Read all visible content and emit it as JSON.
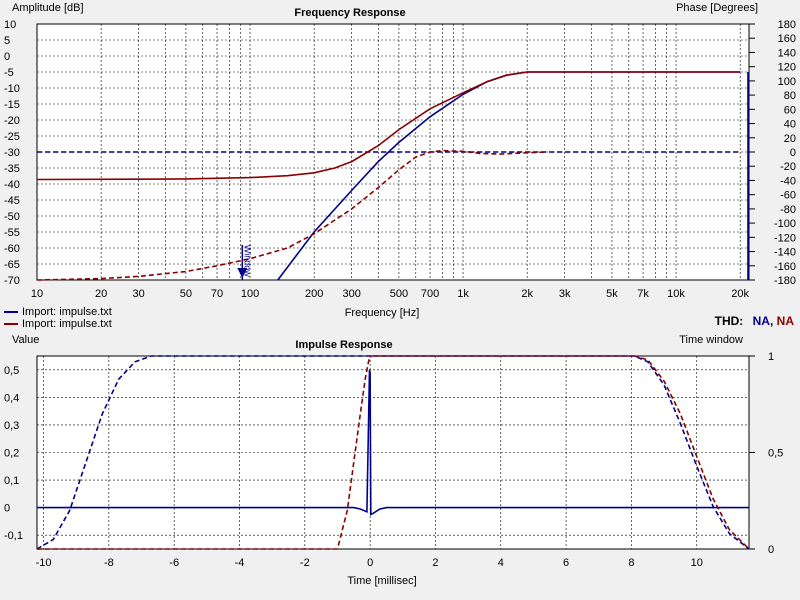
{
  "colors": {
    "series_blue": "#00008b",
    "series_red": "#8b0000",
    "plot_bg": "#ffffff",
    "grid": "#000000"
  },
  "freq_chart": {
    "title": "Frequency Response",
    "left_axis_label": "Amplitude [dB]",
    "right_axis_label": "Phase [Degrees]",
    "x_axis_label": "Frequency [Hz]",
    "marker_label": "Window",
    "left_ticks": [
      "10",
      "5",
      "0",
      "-5",
      "-10",
      "-15",
      "-20",
      "-25",
      "-30",
      "-35",
      "-40",
      "-45",
      "-50",
      "-55",
      "-60",
      "-65",
      "-70"
    ],
    "right_ticks": [
      "180",
      "160",
      "140",
      "120",
      "100",
      "80",
      "60",
      "40",
      "20",
      "0",
      "-20",
      "-40",
      "-60",
      "-80",
      "-100",
      "-120",
      "-140",
      "-160",
      "-180"
    ],
    "x_ticks": [
      "10",
      "20",
      "30",
      "50",
      "70",
      "100",
      "200",
      "300",
      "500",
      "700",
      "1k",
      "2k",
      "3k",
      "5k",
      "7k",
      "10k",
      "20k"
    ]
  },
  "legend": [
    {
      "label": "Import: impulse.txt",
      "color": "#00008b"
    },
    {
      "label": "Import: impulse.txt",
      "color": "#8b0000"
    }
  ],
  "thd": {
    "label": "THD:",
    "value_blue": "NA",
    "separator": ",",
    "value_red": "NA"
  },
  "impulse_chart": {
    "title": "Impulse Response",
    "left_axis_label": "Value",
    "right_axis_label": "Time window",
    "x_axis_label": "Time [millisec]",
    "left_ticks": [
      "0,5",
      "0,4",
      "0,3",
      "0,2",
      "0,1",
      "0",
      "-0,1"
    ],
    "right_ticks": [
      "1",
      "0,5",
      "0"
    ],
    "x_ticks": [
      "-10",
      "-8",
      "-6",
      "-4",
      "-2",
      "0",
      "2",
      "4",
      "6",
      "8",
      "10"
    ]
  },
  "chart_data": [
    {
      "type": "line",
      "title": "Frequency Response",
      "xlabel": "Frequency [Hz]",
      "ylabel": "Amplitude [dB]",
      "y2label": "Phase [Degrees]",
      "xscale": "log",
      "xlim": [
        10,
        22000
      ],
      "ylim": [
        -70,
        10
      ],
      "y2lim": [
        -180,
        180
      ],
      "grid": true,
      "series": [
        {
          "name": "Import: impulse.txt",
          "color": "blue",
          "quantity": "amplitude",
          "style": "solid",
          "x": [
            135,
            200,
            300,
            400,
            500,
            700,
            1000,
            1300,
            1600,
            2000,
            3000,
            5000,
            10000,
            20000
          ],
          "y": [
            -70,
            -55,
            -42,
            -33,
            -27,
            -19,
            -12,
            -8,
            -6,
            -5,
            -5,
            -5,
            -5,
            -5
          ]
        },
        {
          "name": "Import: impulse.txt",
          "color": "blue",
          "quantity": "phase",
          "style": "dashed",
          "x": [
            10,
            100,
            1000,
            10000,
            20000
          ],
          "y": [
            0,
            0,
            0,
            0,
            0
          ]
        },
        {
          "name": "Import: impulse.txt",
          "color": "red",
          "quantity": "amplitude",
          "style": "solid",
          "x": [
            10,
            30,
            50,
            100,
            150,
            200,
            250,
            300,
            400,
            500,
            700,
            1000,
            1300,
            1600,
            2000,
            3000,
            5000,
            10000,
            20000
          ],
          "y": [
            -38.6,
            -38.5,
            -38.4,
            -38,
            -37.4,
            -36.5,
            -35,
            -33,
            -28,
            -23,
            -16.5,
            -11.5,
            -8,
            -6,
            -5,
            -5,
            -5,
            -5,
            -5
          ]
        },
        {
          "name": "Import: impulse.txt",
          "color": "red",
          "quantity": "phase",
          "style": "dashed",
          "x": [
            10,
            20,
            30,
            50,
            70,
            100,
            150,
            200,
            300,
            400,
            500,
            600,
            700,
            800,
            1000,
            1200,
            1500,
            2000,
            2500
          ],
          "y": [
            -180,
            -178,
            -175,
            -168,
            -160,
            -150,
            -135,
            -115,
            -80,
            -50,
            -25,
            -7,
            0,
            2,
            1,
            -2,
            -3,
            -1,
            0
          ]
        }
      ],
      "annotations": [
        "Window"
      ]
    },
    {
      "type": "line",
      "title": "Impulse Response",
      "xlabel": "Time [millisec]",
      "ylabel": "Value",
      "y2label": "Time window",
      "xlim": [
        -10.2,
        11.6
      ],
      "ylim": [
        -0.15,
        0.55
      ],
      "y2lim": [
        0,
        1
      ],
      "grid": true,
      "series": [
        {
          "name": "Import: impulse.txt",
          "color": "blue",
          "quantity": "impulse",
          "style": "solid",
          "x": [
            -10.2,
            -0.5,
            -0.3,
            -0.1,
            -0.02,
            0,
            0.02,
            0.1,
            0.3,
            0.5,
            11.6
          ],
          "y": [
            0,
            0,
            -0.005,
            -0.015,
            0.5,
            0.49,
            -0.025,
            -0.02,
            -0.005,
            0,
            0
          ]
        },
        {
          "name": "Import: impulse.txt",
          "color": "blue",
          "quantity": "window",
          "style": "dashed",
          "x": [
            -10.2,
            -9.7,
            -9.2,
            -8.7,
            -8.2,
            -7.7,
            -7.2,
            -6.7,
            8.1,
            8.5,
            9,
            9.5,
            10,
            10.5,
            11,
            11.6
          ],
          "y": [
            0,
            0.05,
            0.2,
            0.45,
            0.7,
            0.88,
            0.97,
            1,
            1,
            0.97,
            0.85,
            0.65,
            0.43,
            0.22,
            0.08,
            0
          ]
        },
        {
          "name": "Import: impulse.txt",
          "color": "red",
          "quantity": "window",
          "style": "dashed",
          "x": [
            -10.2,
            -1,
            -0.7,
            -0.5,
            -0.3,
            -0.15,
            -0.05,
            0,
            8.1,
            8.5,
            9,
            9.5,
            10,
            10.5,
            11,
            11.6
          ],
          "y": [
            0,
            0,
            0.2,
            0.45,
            0.7,
            0.88,
            0.97,
            1,
            1,
            0.98,
            0.87,
            0.7,
            0.48,
            0.26,
            0.1,
            0
          ]
        }
      ]
    }
  ]
}
